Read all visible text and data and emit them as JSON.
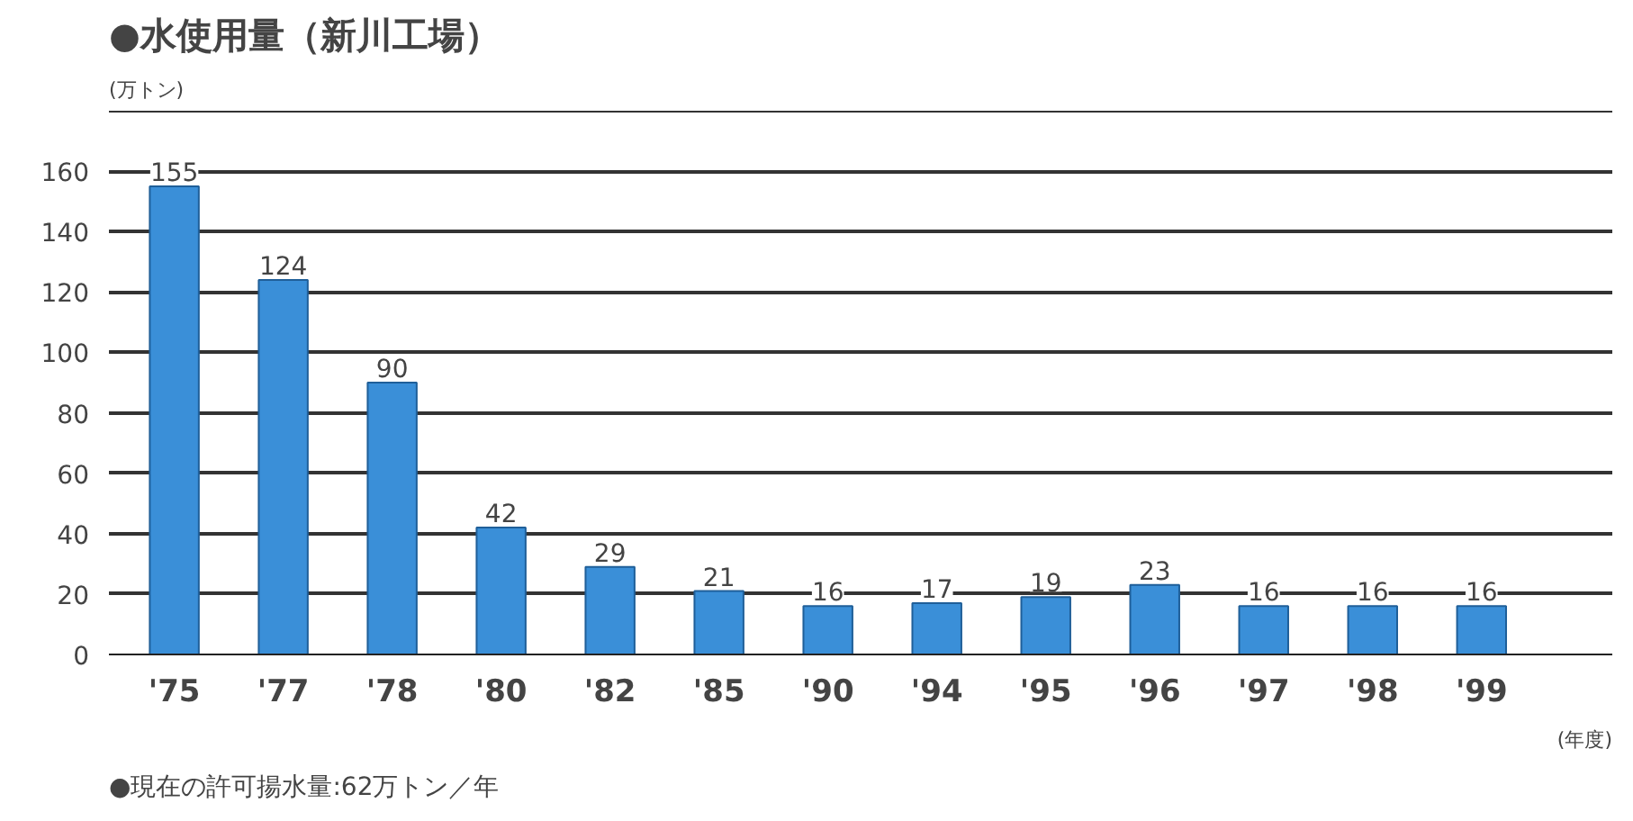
{
  "chart_data": {
    "type": "bar",
    "title": "●水使用量（新川工場）",
    "ylabel": "(万トン)",
    "xlabel": "(年度)",
    "categories": [
      "'75",
      "'77",
      "'78",
      "'80",
      "'82",
      "'85",
      "'90",
      "'94",
      "'95",
      "'96",
      "'97",
      "'98",
      "'99"
    ],
    "values": [
      155,
      124,
      90,
      42,
      29,
      21,
      16,
      17,
      19,
      23,
      16,
      16,
      16
    ],
    "color": "#3a8fd8",
    "data_labels": true,
    "ylim": [
      0,
      180
    ],
    "yticks": [
      0,
      20,
      40,
      60,
      80,
      100,
      120,
      140,
      160,
      {
        "value": 180,
        "label": null
      }
    ],
    "grid": "y",
    "annotations": [
      "●現在の許可揚水量:62万トン／年"
    ]
  }
}
